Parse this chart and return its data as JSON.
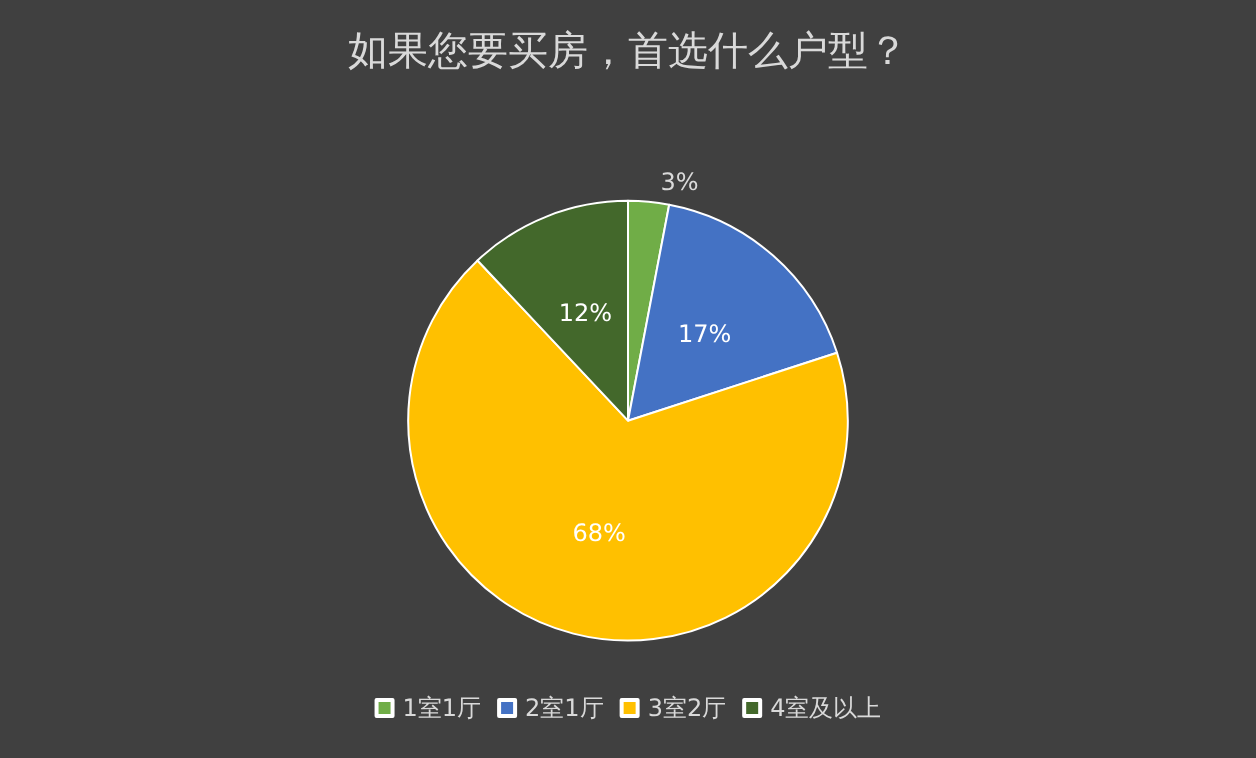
{
  "chart_data": {
    "type": "pie",
    "title": "如果您要买房，首选什么户型？",
    "categories": [
      "1室1厅",
      "2室1厅",
      "3室2厅",
      "4室及以上"
    ],
    "values": [
      3,
      17,
      68,
      12
    ],
    "value_labels": [
      "3%",
      "17%",
      "68%",
      "12%"
    ],
    "colors": [
      "#70ad47",
      "#4472c4",
      "#ffc000",
      "#43682b"
    ],
    "legend": "bottom"
  }
}
